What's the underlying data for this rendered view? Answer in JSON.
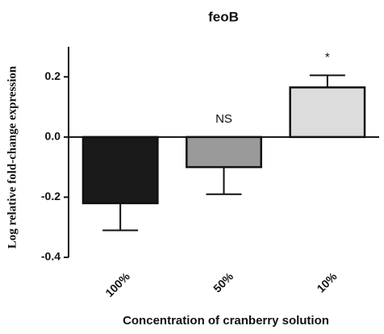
{
  "chart_data": {
    "type": "bar",
    "title": "feoB",
    "x_label": "Concentration of cranberry solution",
    "y_label": "Log relative fold-change expression",
    "categories": [
      "100%",
      "50%",
      "10%"
    ],
    "values": [
      -0.22,
      -0.1,
      0.165
    ],
    "errors": [
      0.09,
      0.09,
      0.04
    ],
    "annotations": [
      null,
      "NS",
      "*"
    ],
    "colors": [
      "#1a1a1a",
      "#9a9a9a",
      "#dcdcdc"
    ],
    "ylim": [
      -0.4,
      0.3
    ],
    "yticks": [
      {
        "value": 0.2,
        "label": "0.2"
      },
      {
        "value": 0,
        "label": "0.0"
      },
      {
        "value": -0.2,
        "label": "-0.2"
      },
      {
        "value": -0.4,
        "label": "-0.4"
      }
    ]
  }
}
